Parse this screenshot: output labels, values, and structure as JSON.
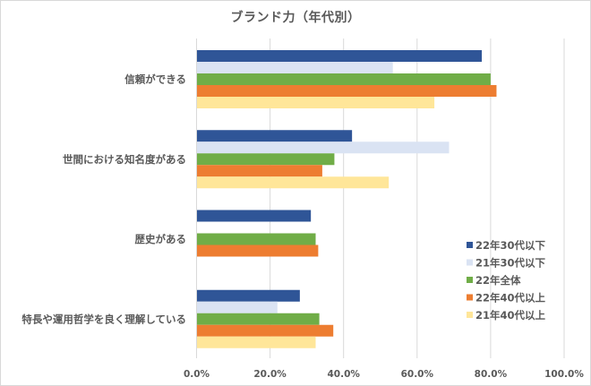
{
  "chart_data": {
    "type": "bar",
    "orientation": "horizontal",
    "title": "ブランド力（年代別）",
    "xlabel": "",
    "ylabel": "",
    "xlim": [
      0,
      100
    ],
    "x_ticks": [
      "0.0%",
      "20.0%",
      "40.0%",
      "60.0%",
      "80.0%",
      "100.0%"
    ],
    "x_tick_values": [
      0,
      20,
      40,
      60,
      80,
      100
    ],
    "grid": true,
    "legend_position": "bottom-right",
    "categories": [
      "信頼ができる",
      "世間における知名度がある",
      "歴史がある",
      "特長や運用哲学を良く理解している"
    ],
    "series": [
      {
        "name": "22年30代以下",
        "color": "#2F5597",
        "values": [
          77.6,
          42.3,
          31.1,
          28.1
        ]
      },
      {
        "name": "21年30代以下",
        "color": "#DAE3F3",
        "values": [
          53.4,
          68.7,
          null,
          22.0
        ]
      },
      {
        "name": "22年全体",
        "color": "#70AD47",
        "values": [
          80.0,
          37.5,
          32.4,
          33.4
        ]
      },
      {
        "name": "22年40代以上",
        "color": "#ED7D31",
        "values": [
          81.6,
          34.2,
          33.1,
          37.2
        ]
      },
      {
        "name": "21年40代以上",
        "color": "#FFE699",
        "values": [
          64.7,
          52.3,
          null,
          32.4
        ]
      }
    ]
  }
}
